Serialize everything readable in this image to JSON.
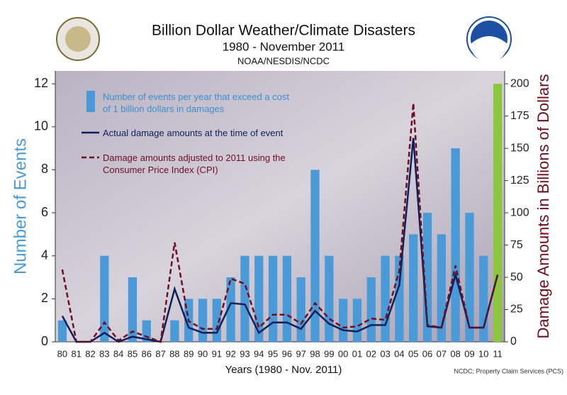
{
  "chart_data": {
    "type": "bar",
    "title": "Billion Dollar Weather/Climate Disasters",
    "subtitle": "1980 - November 2011",
    "source_line": "NOAA/NESDIS/NCDC",
    "footnote": "NCDC; Property Claim Services (PCS)",
    "xlabel": "Years (1980 - Nov. 2011)",
    "ylabel": "Number of Events",
    "y2label": "Damage Amounts in Billions of Dollars",
    "categories": [
      "80",
      "81",
      "82",
      "83",
      "84",
      "85",
      "86",
      "87",
      "88",
      "89",
      "90",
      "91",
      "92",
      "93",
      "94",
      "95",
      "96",
      "97",
      "98",
      "99",
      "00",
      "01",
      "02",
      "03",
      "04",
      "05",
      "06",
      "07",
      "08",
      "09",
      "10",
      "11"
    ],
    "series": [
      {
        "name": "Number of events per year that exceed a cost of 1 billion dollars in damages",
        "type": "bar",
        "color": "#4a9ad8",
        "bar_colors": [
          "#4a9ad8",
          "#4a9ad8",
          "#4a9ad8",
          "#4a9ad8",
          "#4a9ad8",
          "#4a9ad8",
          "#4a9ad8",
          "#4a9ad8",
          "#4a9ad8",
          "#4a9ad8",
          "#4a9ad8",
          "#4a9ad8",
          "#4a9ad8",
          "#4a9ad8",
          "#4a9ad8",
          "#4a9ad8",
          "#4a9ad8",
          "#4a9ad8",
          "#4a9ad8",
          "#4a9ad8",
          "#4a9ad8",
          "#4a9ad8",
          "#4a9ad8",
          "#4a9ad8",
          "#4a9ad8",
          "#4a9ad8",
          "#4a9ad8",
          "#4a9ad8",
          "#4a9ad8",
          "#4a9ad8",
          "#4a9ad8",
          "#8cc63f"
        ],
        "values": [
          1,
          0,
          0,
          4,
          0,
          3,
          1,
          0,
          1,
          2,
          2,
          2,
          3,
          4,
          4,
          4,
          4,
          3,
          8,
          4,
          2,
          2,
          3,
          4,
          4,
          5,
          6,
          5,
          9,
          6,
          4,
          12
        ]
      },
      {
        "name": "Actual damage amounts at the time of event",
        "type": "line",
        "axis": "y2",
        "color": "#0f1f5c",
        "dashed": false,
        "values": [
          20,
          0,
          0,
          7,
          0,
          4,
          2,
          0,
          41,
          11,
          7,
          7,
          30,
          29,
          7,
          15,
          15,
          10,
          24,
          14,
          9,
          8,
          13,
          13,
          44,
          158,
          12,
          11,
          52,
          11,
          11,
          52
        ]
      },
      {
        "name": "Damage amounts adjusted to 2011 using the Consumer Price Index (CPI)",
        "type": "line",
        "axis": "y2",
        "color": "#6e0f1e",
        "dashed": true,
        "values": [
          56,
          0,
          0,
          15,
          1,
          8,
          4,
          0,
          77,
          16,
          10,
          10,
          49,
          45,
          11,
          21,
          21,
          14,
          30,
          18,
          11,
          12,
          18,
          17,
          55,
          185,
          13,
          11,
          59,
          11,
          11,
          52
        ]
      }
    ],
    "ylim": [
      0,
      12.6
    ],
    "yticks": [
      0,
      2,
      4,
      6,
      8,
      10,
      12
    ],
    "y2lim": [
      0,
      210
    ],
    "y2ticks": [
      0,
      25,
      50,
      75,
      100,
      125,
      150,
      175,
      200
    ]
  }
}
